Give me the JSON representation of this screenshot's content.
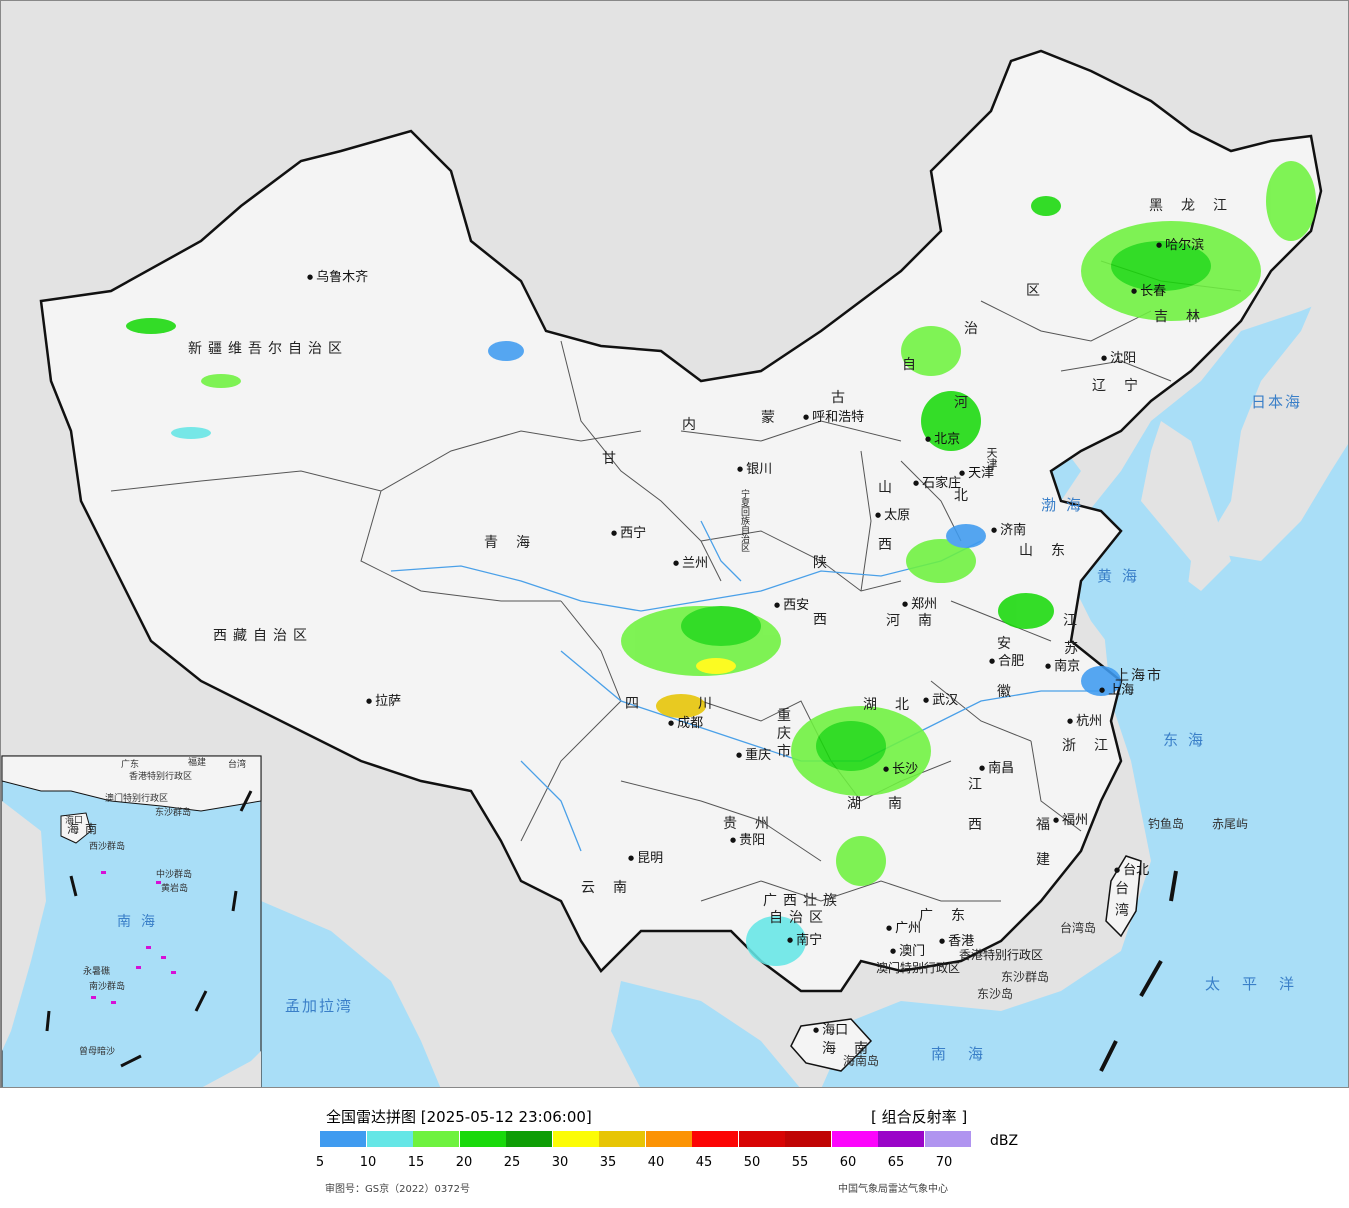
{
  "cities": [
    "乌鲁木齐",
    "拉萨",
    "西宁",
    "兰州",
    "银川",
    "呼和浩特",
    "北京",
    "天津",
    "石家庄",
    "太原",
    "济南",
    "郑州",
    "西安",
    "成都",
    "重庆",
    "贵阳",
    "昆明",
    "南宁",
    "广州",
    "香港",
    "澳门",
    "长沙",
    "武汉",
    "合肥",
    "南京",
    "上海",
    "杭州",
    "南昌",
    "福州",
    "台北",
    "海口",
    "沈阳",
    "长春",
    "哈尔滨"
  ],
  "provinces": {
    "xinjiang": "新疆维吾尔自治区",
    "xizang": "西藏自治区",
    "qinghai": "青海",
    "gansu": "甘",
    "sichuan_si": "四",
    "sichuan_chuan": "川",
    "yunnan": "云南",
    "guizhou": "贵州",
    "guangxi_1": "广西壮族",
    "guangxi_2": "自治区",
    "guangdong": "广东",
    "hunan_hu": "湖",
    "hunan_nan": "南",
    "hubei": "湖北",
    "henan": "河南",
    "shaanxi_shan": "陕",
    "shaanxi_xi": "西",
    "shanxi_shan": "山",
    "shanxi_xi": "西",
    "hebei_he": "河",
    "hebei_bei": "北",
    "shandong": "山东",
    "jiangsu_jiang": "江",
    "jiangsu_su": "苏",
    "anhui_an": "安",
    "anhui_hui": "徽",
    "zhejiang": "浙江",
    "jiangxi_jiang": "江",
    "jiangxi_xi": "西",
    "fujian_fu": "福",
    "fujian_jian": "建",
    "neimenggu_nei": "内",
    "neimenggu_meng": "蒙",
    "neimenggu_gu": "古",
    "neimenggu_zi": "自",
    "neimenggu_zhi": "治",
    "neimenggu_qu": "区",
    "heilongjiang": "黑龙江",
    "jilin": "吉林",
    "liaoning": "辽宁",
    "hainan": "海南",
    "taiwan_tai": "台",
    "taiwan_wan": "湾",
    "chongqing_1": "重",
    "chongqing_2": "庆",
    "chongqing_3": "市",
    "shanghai": "上海市",
    "ningxia": "宁夏回族自治区",
    "tianjin": "天津",
    "hk_sar": "香港特别行政区",
    "macau_sar": "澳门特别行政区"
  },
  "seas": {
    "bohai": "渤海",
    "huanghai": "黄海",
    "donghai": "东海",
    "nanhai": "南海",
    "riben": "日本海",
    "taiping": "太平洋",
    "mengjiala": "孟加拉湾"
  },
  "islands": {
    "diaoyu": "钓鱼岛",
    "chiwei": "赤尾屿",
    "dongsha_qun": "东沙群岛",
    "dongsha_dao": "东沙岛",
    "taiwan_dao": "台湾岛",
    "hainan_dao": "海南岛"
  },
  "inset": {
    "hainan": "海南",
    "nanhai": "南海",
    "labels": [
      "广东",
      "福建",
      "台湾",
      "海口",
      "香港特别行政区",
      "澳门特别行政区",
      "东沙群岛",
      "西沙群岛",
      "中沙群岛",
      "黄岩岛",
      "南沙群岛",
      "曾母暗沙",
      "永暑礁"
    ]
  },
  "legend": {
    "title": "全国雷达拼图 [2025-05-12 23:06:00]",
    "product": "[ 组合反射率 ]",
    "unit": "dBZ",
    "ticks": [
      "5",
      "10",
      "15",
      "20",
      "25",
      "30",
      "35",
      "40",
      "45",
      "50",
      "55",
      "60",
      "65",
      "70"
    ],
    "colors": [
      "#3f9bf0",
      "#65e6e6",
      "#6ef23f",
      "#19d90b",
      "#0e9d06",
      "#fcfc06",
      "#e7c504",
      "#fc9304",
      "#fc0404",
      "#d80404",
      "#c00404",
      "#fc04fc",
      "#9a04c8",
      "#b094f0"
    ]
  },
  "footer": {
    "approval": "审图号：GS京（2022）0372号",
    "agency": "中国气象局雷达气象中心"
  },
  "colors": {
    "sea": "#a9def7",
    "land": "#f4f4f4",
    "foreign": "#e3e3e3",
    "border": "#111111"
  }
}
